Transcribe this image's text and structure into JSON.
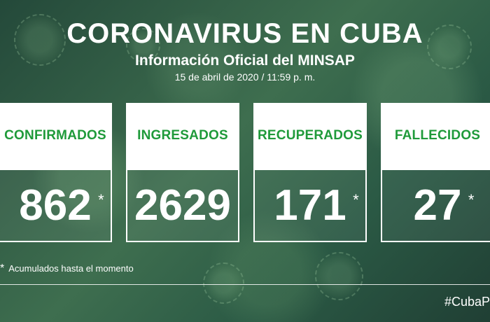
{
  "header": {
    "title": "CORONAVIRUS EN CUBA",
    "subtitle": "Información Oficial del MINSAP",
    "date": "15 de abril de 2020 / 11:59 p. m."
  },
  "cards": [
    {
      "label": "CONFIRMADOS",
      "value": "862",
      "asterisk": "*"
    },
    {
      "label": "INGRESADOS",
      "value": "2629",
      "asterisk": ""
    },
    {
      "label": "RECUPERADOS",
      "value": "171",
      "asterisk": "*"
    },
    {
      "label": "FALLECIDOS",
      "value": "27",
      "asterisk": "*"
    }
  ],
  "footnote": {
    "mark": "*",
    "text": "Acumulados hasta el momento"
  },
  "hashtag": "#CubaP",
  "colors": {
    "label_green": "#1f9a3a",
    "background_green": "#2f5a3f",
    "text_white": "#ffffff"
  }
}
